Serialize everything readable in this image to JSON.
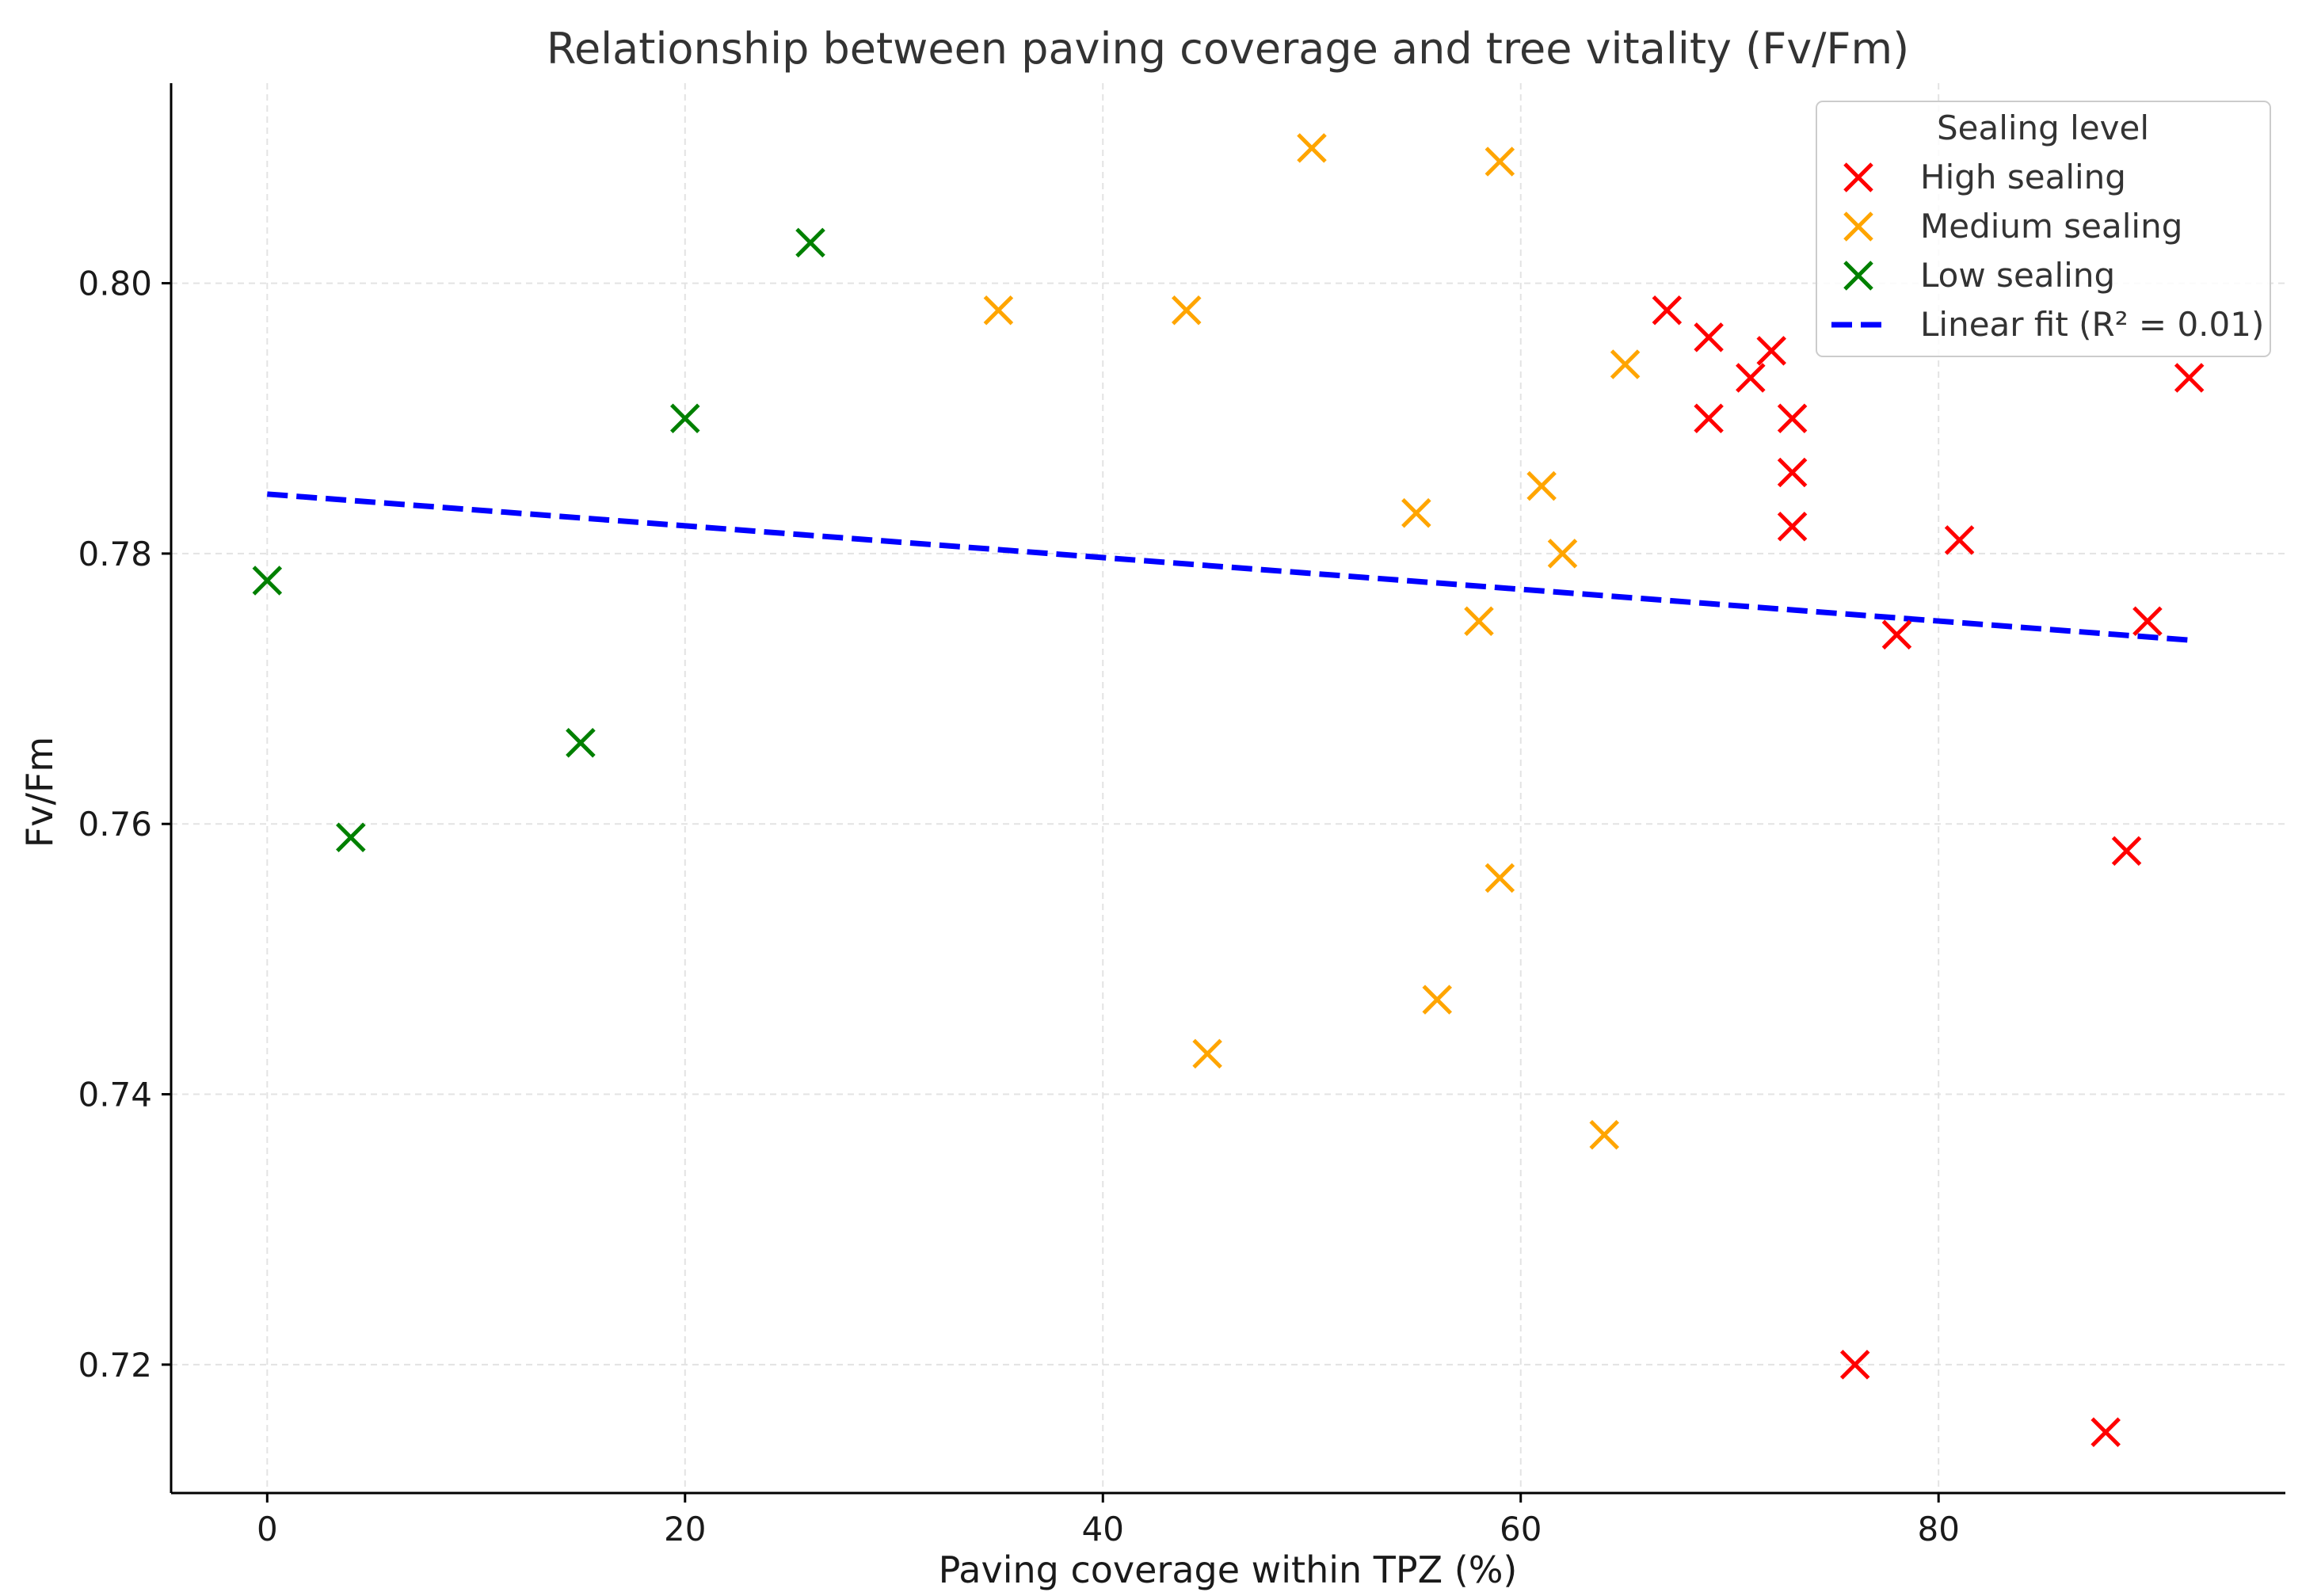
{
  "chart_data": {
    "type": "scatter",
    "title": "Relationship between paving coverage and tree vitality (Fv/Fm)",
    "xlabel": "Paving coverage within TPZ (%)",
    "ylabel": "Fv/Fm",
    "xlim": [
      -4.6,
      96.6
    ],
    "ylim": [
      0.7105,
      0.8148
    ],
    "xticks": [
      0,
      20,
      40,
      60,
      80
    ],
    "xtick_labels": [
      "0",
      "20",
      "40",
      "60",
      "80"
    ],
    "yticks": [
      0.72,
      0.74,
      0.76,
      0.78,
      0.8
    ],
    "ytick_labels": [
      "0.72",
      "0.74",
      "0.76",
      "0.78",
      "0.80"
    ],
    "grid": true,
    "legend": {
      "title": "Sealing level",
      "position": "top-right",
      "entries": [
        "High sealing",
        "Medium sealing",
        "Low sealing",
        "Linear fit (R² = 0.01)"
      ]
    },
    "series": [
      {
        "name": "High sealing",
        "color": "#ff0000",
        "marker": "x",
        "points": [
          [
            67,
            0.798
          ],
          [
            69,
            0.796
          ],
          [
            72,
            0.795
          ],
          [
            71,
            0.793
          ],
          [
            69,
            0.79
          ],
          [
            73,
            0.79
          ],
          [
            73,
            0.786
          ],
          [
            73,
            0.782
          ],
          [
            81,
            0.781
          ],
          [
            92,
            0.793
          ],
          [
            78,
            0.774
          ],
          [
            90,
            0.775
          ],
          [
            89,
            0.758
          ],
          [
            76,
            0.72
          ],
          [
            88,
            0.715
          ]
        ]
      },
      {
        "name": "Medium sealing",
        "color": "#ffa500",
        "marker": "x",
        "points": [
          [
            50,
            0.81
          ],
          [
            59,
            0.809
          ],
          [
            35,
            0.798
          ],
          [
            44,
            0.798
          ],
          [
            65,
            0.794
          ],
          [
            61,
            0.785
          ],
          [
            55,
            0.783
          ],
          [
            62,
            0.78
          ],
          [
            58,
            0.775
          ],
          [
            59,
            0.756
          ],
          [
            56,
            0.747
          ],
          [
            45,
            0.743
          ],
          [
            64,
            0.737
          ]
        ]
      },
      {
        "name": "Low sealing",
        "color": "#008000",
        "marker": "x",
        "points": [
          [
            26,
            0.803
          ],
          [
            20,
            0.79
          ],
          [
            0,
            0.778
          ],
          [
            15,
            0.766
          ],
          [
            4,
            0.759
          ]
        ]
      }
    ],
    "fit": {
      "name": "Linear fit (R² = 0.01)",
      "color": "#0000ff",
      "style": "dashed",
      "x": [
        0,
        92
      ],
      "y": [
        0.7844,
        0.7736
      ]
    }
  }
}
